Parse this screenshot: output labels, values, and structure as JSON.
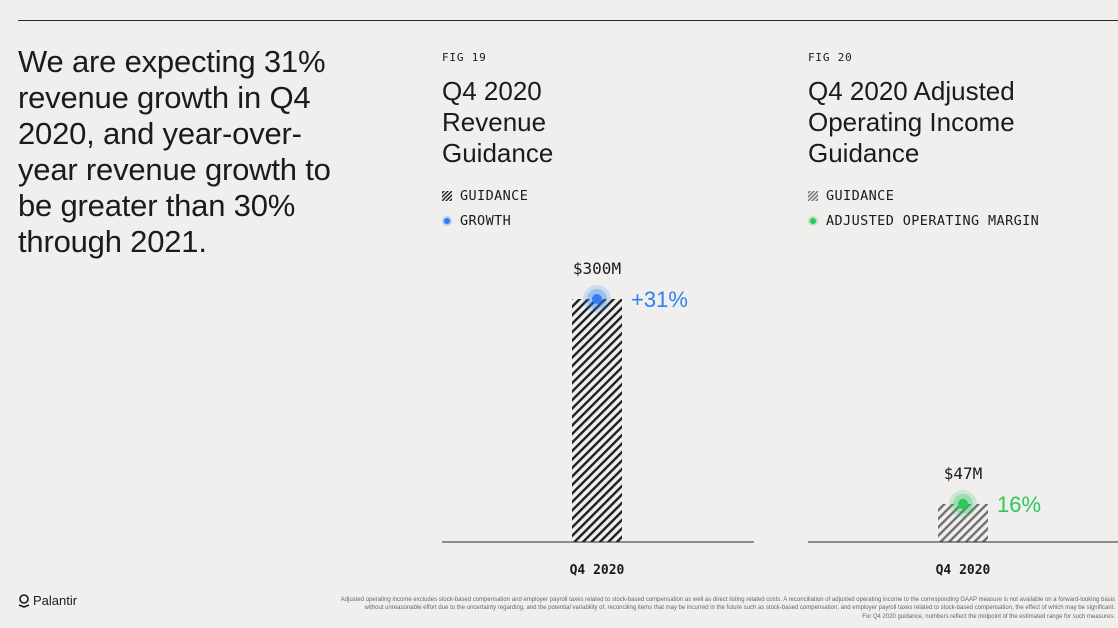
{
  "headline": "We are expecting 31% revenue growth in Q4 2020, and year-over-year revenue growth to be greater than 30% through 2021.",
  "colors": {
    "blue": "#2f7ff2",
    "green": "#2ec75a",
    "dark_hatch": "#1f1f1f",
    "grey_hatch": "#6f6f6f"
  },
  "figures": [
    {
      "fig_label": "FIG 19",
      "title_lines": [
        "Q4 2020",
        "Revenue",
        "Guidance"
      ],
      "legend": [
        {
          "label": "GUIDANCE",
          "icon": "hatch-swatch-icon"
        },
        {
          "label": "GROWTH",
          "icon": "blue-dot-icon"
        }
      ]
    },
    {
      "fig_label": "FIG 20",
      "title_lines": [
        "Q4 2020 Adjusted",
        "Operating Income",
        "Guidance"
      ],
      "legend": [
        {
          "label": "GUIDANCE",
          "icon": "hatch-swatch-icon"
        },
        {
          "label": "ADJUSTED OPERATING MARGIN",
          "icon": "green-dot-icon"
        }
      ]
    }
  ],
  "chart_data": [
    {
      "type": "bar",
      "title": "Q4 2020 Revenue Guidance",
      "categories": [
        "Q4 2020"
      ],
      "series": [
        {
          "name": "Guidance",
          "values": [
            300
          ],
          "unit": "$M"
        }
      ],
      "value_labels": [
        "$300M"
      ],
      "marker": {
        "name": "Growth",
        "values": [
          31
        ],
        "label": "+31%"
      },
      "ylim": [
        0,
        300
      ]
    },
    {
      "type": "bar",
      "title": "Q4 2020 Adjusted Operating Income Guidance",
      "categories": [
        "Q4 2020"
      ],
      "series": [
        {
          "name": "Guidance",
          "values": [
            47
          ],
          "unit": "$M"
        }
      ],
      "value_labels": [
        "$47M"
      ],
      "marker": {
        "name": "Adjusted Operating Margin",
        "values": [
          16
        ],
        "label": "16%"
      },
      "ylim": [
        0,
        300
      ]
    }
  ],
  "footer": {
    "logo_text": "Palantir",
    "footnote_lines": [
      "Adjusted operating income excludes stock-based compensation and employer payroll taxes related to stock-based compensation as well as direct listing related costs. A reconciliation of adjusted operating income to the corresponding GAAP measure is not available on a forward-looking basis",
      "without unreasonable effort due to the uncertainty regarding, and the potential variability of, reconciling items that may be incurred in the future such as stock-based compensation, and employer payroll taxes related to stock-based compensation, the effect of which may be significant.",
      "For Q4 2020 guidance, numbers reflect the midpoint of the estimated range for such measures."
    ]
  }
}
